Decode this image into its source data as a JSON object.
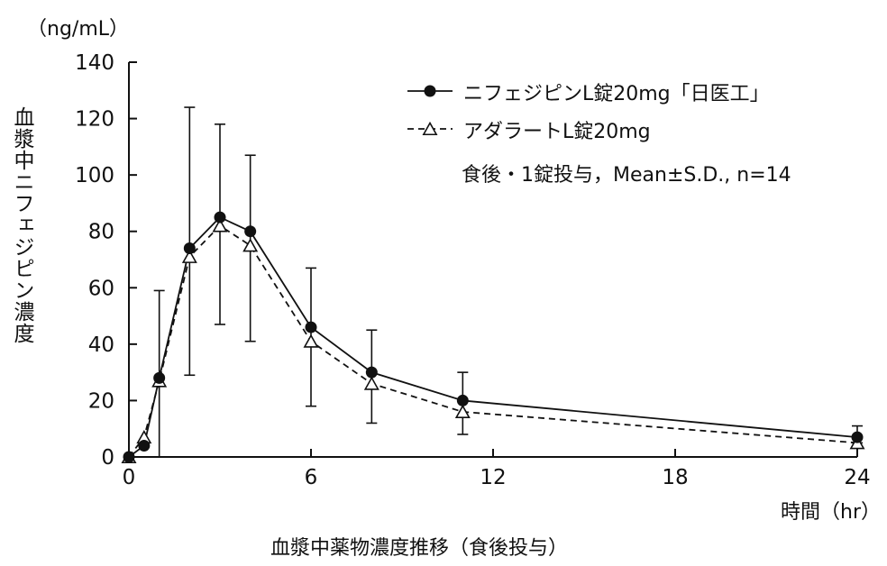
{
  "chart_data": {
    "type": "line",
    "unit_label": "（ng/mL）",
    "ylabel": "血漿中ニフェジピン濃度",
    "xlabel": "時間（hr）",
    "caption": "血漿中薬物濃度推移（食後投与）",
    "annotation": "食後・1錠投与，Mean±S.D., n=14",
    "xlim": [
      0,
      24
    ],
    "ylim": [
      0,
      140
    ],
    "xticks": [
      0,
      6,
      12,
      18,
      24
    ],
    "yticks": [
      0,
      20,
      40,
      60,
      80,
      100,
      120,
      140
    ],
    "legend_position": "top-right",
    "series": [
      {
        "name": "ニフェジピンL錠20mg「日医工」",
        "marker": "filled-circle",
        "line": "solid",
        "x": [
          0,
          0.5,
          1,
          2,
          3,
          4,
          6,
          8,
          11,
          24
        ],
        "y": [
          0,
          4,
          28,
          74,
          85,
          80,
          46,
          30,
          20,
          7
        ],
        "error_upper": [
          0,
          0,
          59,
          124,
          118,
          107,
          67,
          45,
          30,
          11
        ],
        "error_lower": [
          0,
          0,
          0,
          29,
          47,
          41,
          18,
          12,
          8,
          5
        ]
      },
      {
        "name": "アダラートL錠20mg",
        "marker": "open-triangle",
        "line": "dashed",
        "x": [
          0,
          0.5,
          1,
          2,
          3,
          4,
          6,
          8,
          11,
          24
        ],
        "y": [
          0,
          7,
          27,
          71,
          82,
          75,
          41,
          26,
          16,
          5
        ]
      }
    ]
  }
}
